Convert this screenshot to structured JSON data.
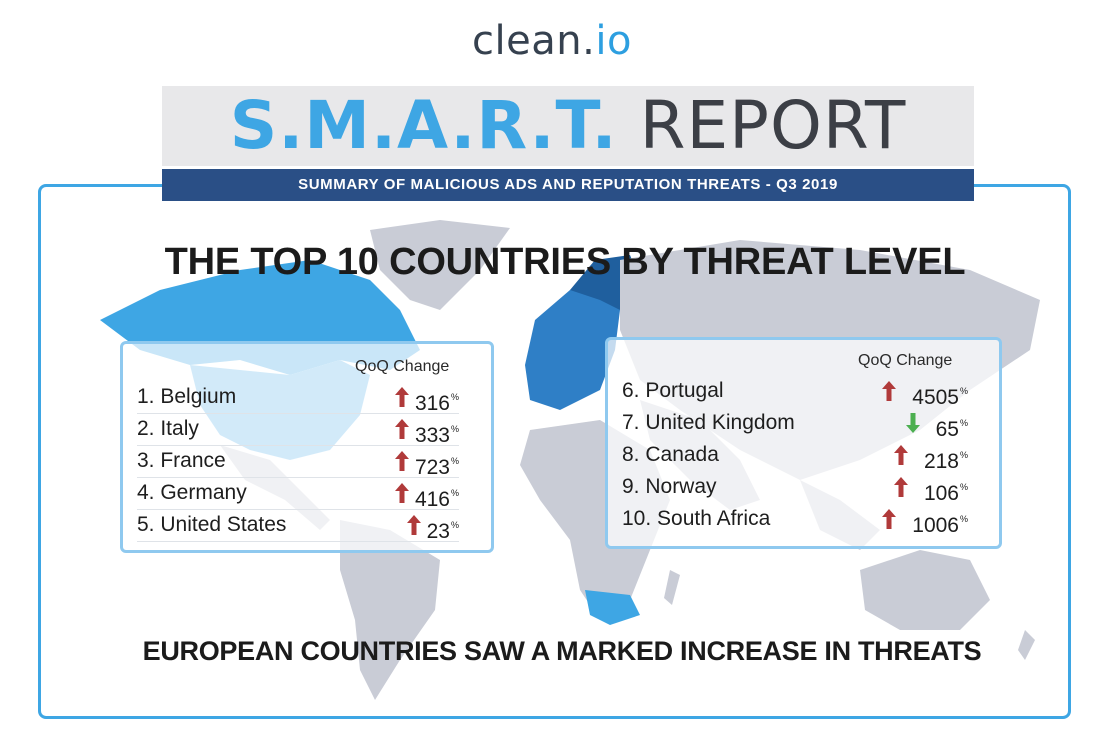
{
  "brand": {
    "logo_part1": "clean.",
    "logo_part2": "io"
  },
  "header": {
    "title_highlight": "S.M.A.R.T.",
    "title_rest": "REPORT",
    "subtitle": "SUMMARY OF MALICIOUS ADS AND REPUTATION THREATS - Q3 2019"
  },
  "heading": "THE TOP 10 COUNTRIES BY THREAT LEVEL",
  "footer": "EUROPEAN COUNTRIES SAW A MARKED INCREASE IN THREATS",
  "left_panel": {
    "column_header": "QoQ Change",
    "rows": [
      {
        "name": "1. Belgium",
        "change": "316",
        "unit": "%",
        "direction": "up"
      },
      {
        "name": "2. Italy",
        "change": "333",
        "unit": "%",
        "direction": "up"
      },
      {
        "name": "3. France",
        "change": "723",
        "unit": "%",
        "direction": "up"
      },
      {
        "name": "4. Germany",
        "change": "416",
        "unit": "%",
        "direction": "up"
      },
      {
        "name": "5. United States",
        "change": "23",
        "unit": "%",
        "direction": "up"
      }
    ]
  },
  "right_panel": {
    "column_header": "QoQ Change",
    "rows": [
      {
        "name": "6. Portugal",
        "change": "4505",
        "unit": "%",
        "direction": "up"
      },
      {
        "name": "7. United Kingdom",
        "change": "65",
        "unit": "%",
        "direction": "down"
      },
      {
        "name": "8. Canada",
        "change": "218",
        "unit": "%",
        "direction": "up"
      },
      {
        "name": "9. Norway",
        "change": "106",
        "unit": "%",
        "direction": "up"
      },
      {
        "name": "10. South Africa",
        "change": "1006",
        "unit": "%",
        "direction": "up"
      }
    ]
  },
  "colors": {
    "up_arrow": "#b03a3a",
    "down_arrow": "#4caf50",
    "accent": "#3ea6e4",
    "navy": "#2a4f86",
    "map_land": "#c9ccd6",
    "map_highlight": "#3ea6e4",
    "map_highlight_dark": "#1f5f9e"
  }
}
